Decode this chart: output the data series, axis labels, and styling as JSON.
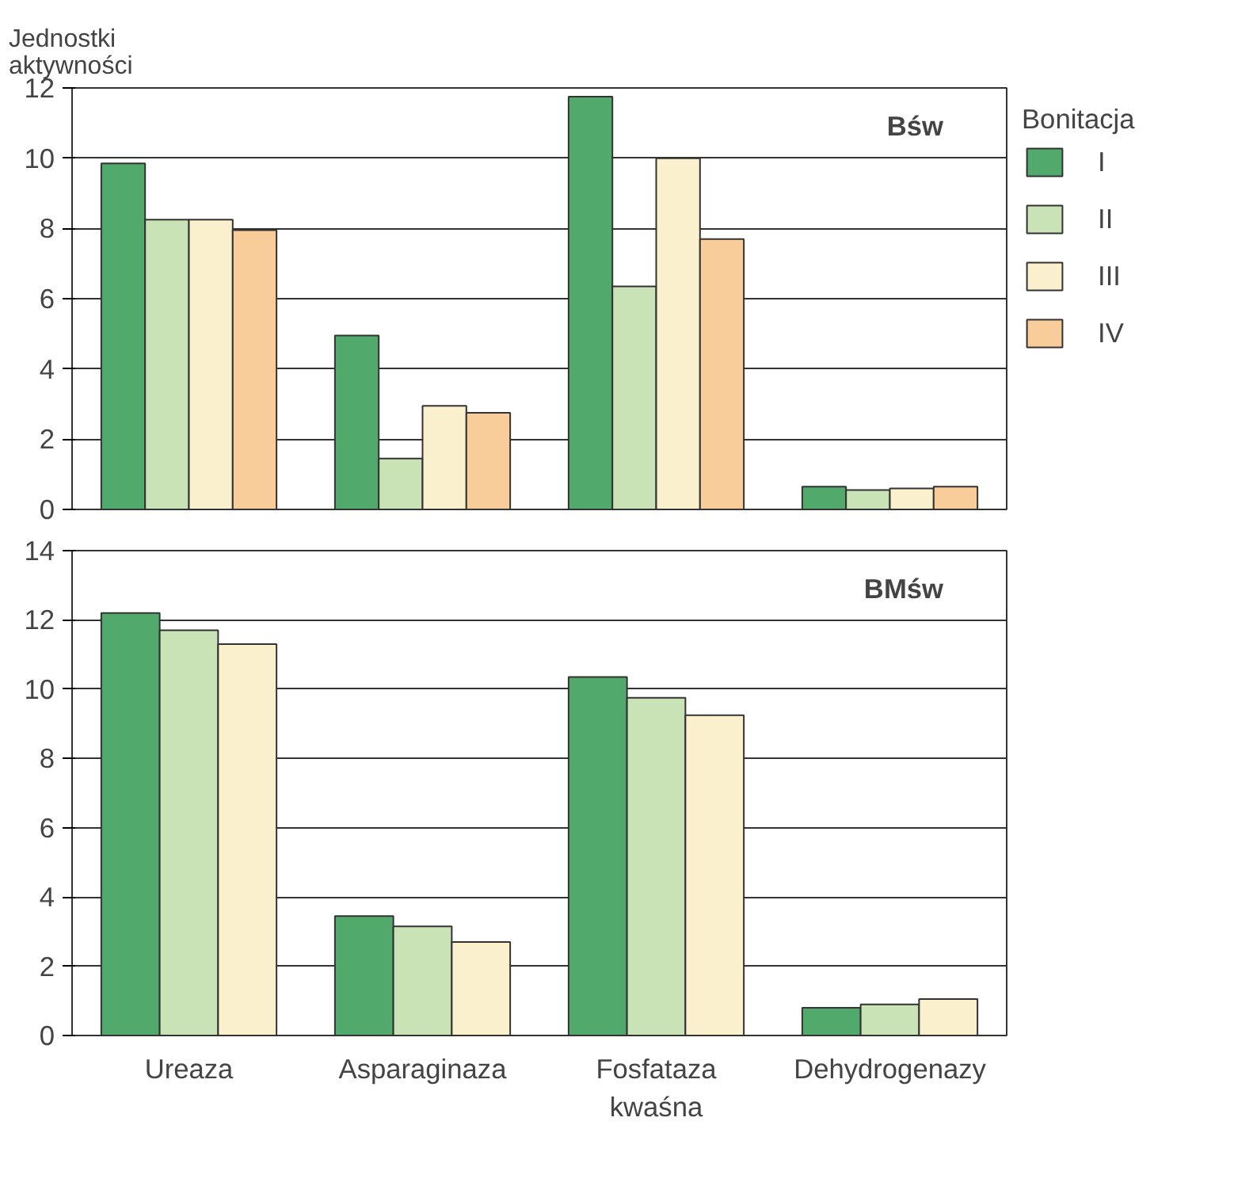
{
  "chart_data": [
    {
      "type": "bar",
      "ylabel": "Jednostki aktywności",
      "legend_title": "Bonitacja",
      "annotations": [
        "Bśw"
      ],
      "categories": [
        null,
        null,
        null,
        null
      ],
      "ylim": [
        0,
        12
      ],
      "yticks": [
        0,
        2,
        4,
        6,
        8,
        10,
        12
      ],
      "grid": "y",
      "legend": "right",
      "tick_labels": "y",
      "series": [
        {
          "name": "I",
          "color": "#52a96c",
          "values": [
            9.85,
            4.95,
            11.75,
            0.65
          ]
        },
        {
          "name": "II",
          "color": "#c9e3b6",
          "values": [
            8.25,
            1.45,
            6.35,
            0.55
          ]
        },
        {
          "name": "III",
          "color": "#faf0cd",
          "values": [
            8.25,
            2.95,
            10.0,
            0.6
          ]
        },
        {
          "name": "IV",
          "color": "#f9cd9a",
          "values": [
            7.95,
            2.75,
            7.7,
            0.65
          ]
        }
      ]
    },
    {
      "type": "bar",
      "annotations": [
        "BMśw"
      ],
      "categories": [
        "Ureaza",
        "Asparaginaza",
        "Fosfataza\nkwaśna",
        "Dehydrogenazy"
      ],
      "ylim": [
        0,
        14
      ],
      "yticks": [
        0,
        2,
        4,
        6,
        8,
        10,
        12,
        14
      ],
      "grid": "y",
      "series": [
        {
          "color": "#52a96c",
          "values": [
            12.2,
            3.45,
            10.35,
            0.8
          ]
        },
        {
          "color": "#c9e3b6",
          "values": [
            11.7,
            3.15,
            9.75,
            0.9
          ]
        },
        {
          "color": "#faf0cd",
          "values": [
            11.3,
            2.7,
            9.25,
            1.05
          ]
        }
      ]
    }
  ]
}
